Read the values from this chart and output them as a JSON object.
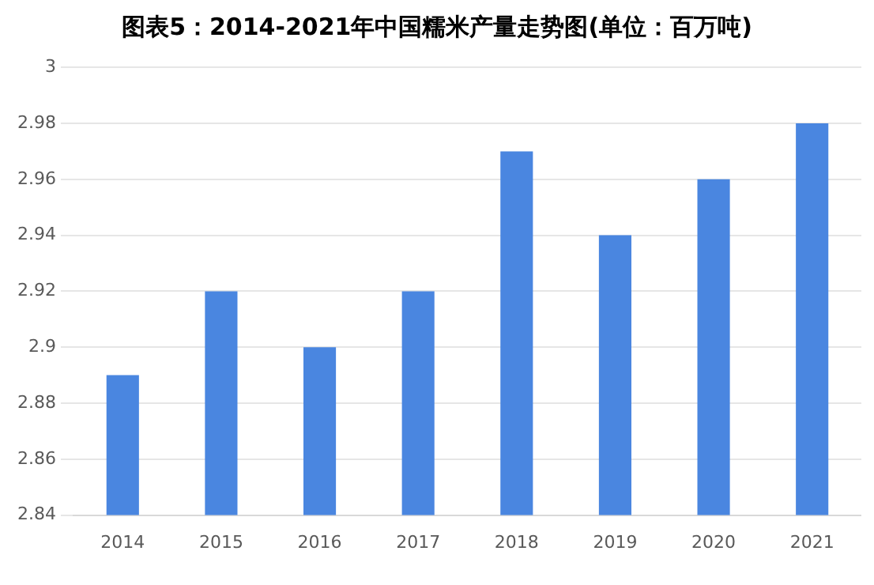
{
  "chart_data": {
    "type": "bar",
    "title": "图表5：2014-2021年中国糯米产量走势图(单位：百万吨)",
    "categories": [
      "2014",
      "2015",
      "2016",
      "2017",
      "2018",
      "2019",
      "2020",
      "2021"
    ],
    "values": [
      2.89,
      2.92,
      2.9,
      2.92,
      2.97,
      2.94,
      2.96,
      2.98
    ],
    "color": "#4a86e0",
    "ylim": [
      2.84,
      3
    ],
    "yticks": [
      2.84,
      2.86,
      2.88,
      2.9,
      2.92,
      2.94,
      2.96,
      2.98,
      3
    ],
    "grid": "y"
  }
}
